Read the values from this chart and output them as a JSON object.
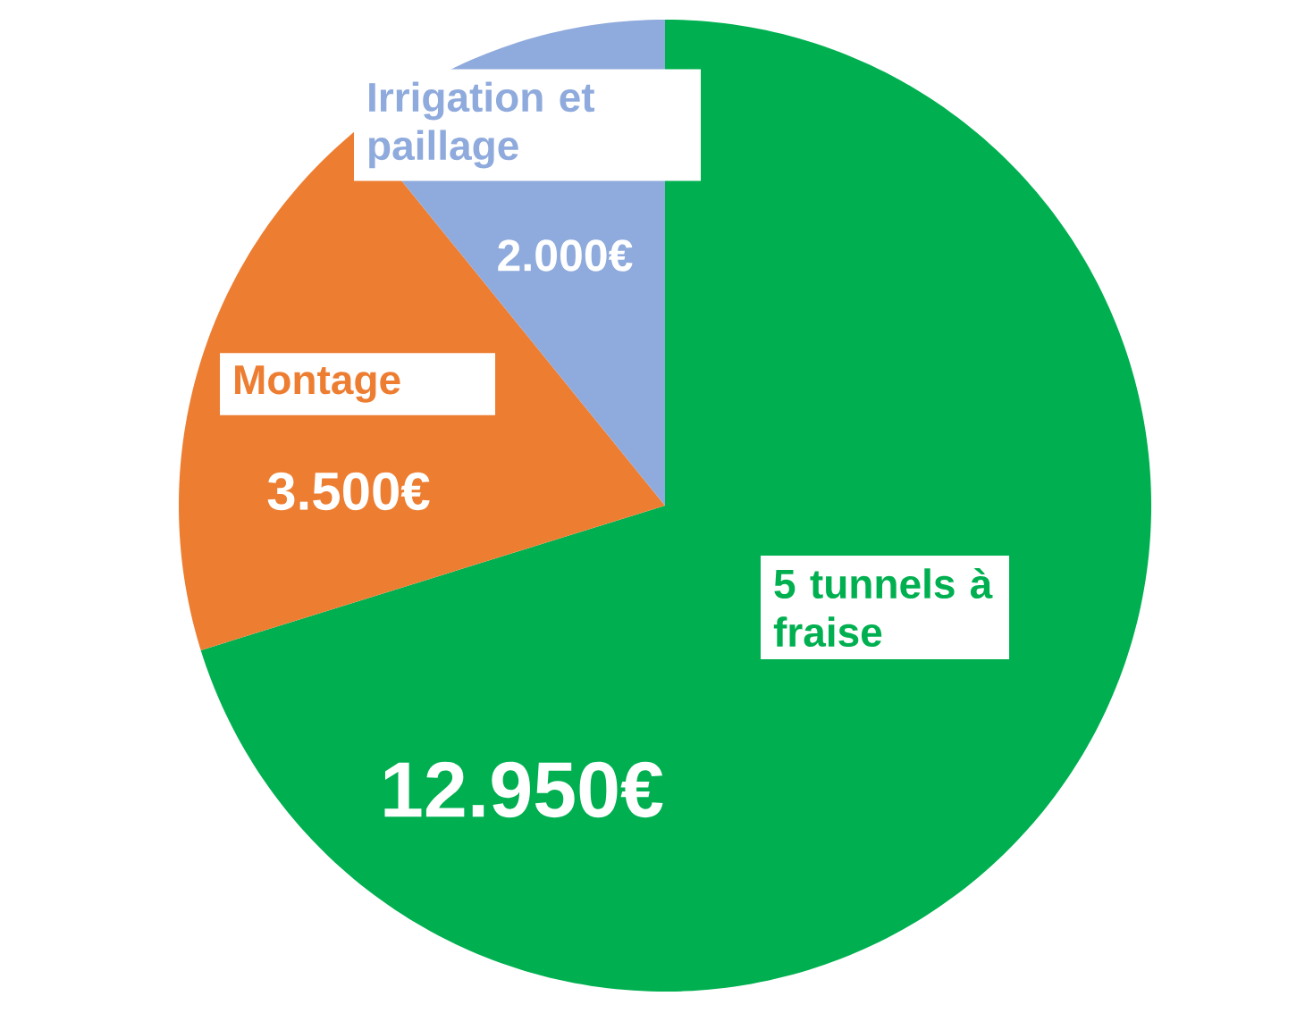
{
  "chart_data": {
    "type": "pie",
    "categories": [
      "5 tunnels à fraise",
      "Montage",
      "Irrigation et paillage"
    ],
    "values": [
      12950,
      3500,
      2000
    ],
    "value_labels": [
      "12.950€",
      "3.500€",
      "2.000€"
    ],
    "colors": [
      "#00b050",
      "#ed7d31",
      "#8faadc"
    ]
  }
}
